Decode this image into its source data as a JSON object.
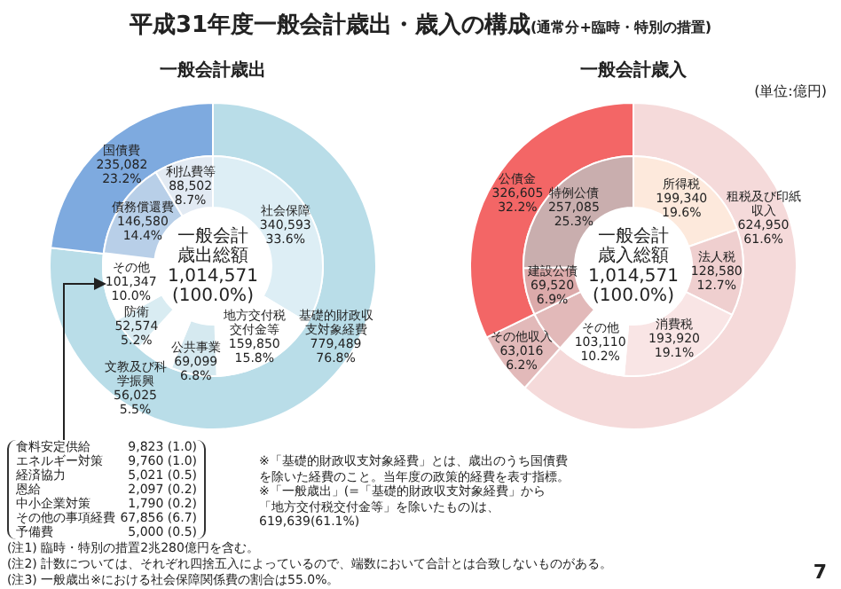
{
  "chart_data": [
    {
      "type": "donut",
      "title": "一般会計歳出",
      "categories": [
        "基礎的財政収支対象経費",
        "国債費"
      ],
      "values": [
        76.8,
        23.2
      ],
      "value_labels": [
        "779,489\n76.8%",
        "235,082\n23.2%"
      ],
      "colors": [
        "#b9dde8",
        "#7eaadf"
      ],
      "annotations": [
        "平成31年度一般会計歳出・歳入の構成",
        "(通常分+臨時・特別の措置)",
        "一般会計歳出総額",
        "1,014,571",
        "(100.0%)",
        "食料安定供給 9,823 (1.0)",
        "エネルギー対策 9,760 (1.0)",
        "経済協力 5,021 (0.5)",
        "恩給 2,097 (0.2)",
        "中小企業対策 1,790 (0.2)",
        "その他の事項経費 67,856 (6.7)",
        "予備費 5,000 (0.5)",
        "(注1) 臨時・特別の措置2兆280億円を含む。",
        "(注2) 計数については、それぞれ四捨五入によっているので、端数において合計とは合致しないものがある。",
        "(注3) 一般歳出※における社会保障関係費の割合は55.0%。"
      ]
    },
    {
      "type": "donut",
      "categories": [
        "社会保障",
        "地方交付税交付金等",
        "公共事業",
        "文教及び科学振興",
        "防衛",
        "その他",
        "債務償還費",
        "利払費等"
      ],
      "values": [
        33.6,
        15.8,
        6.8,
        5.5,
        5.2,
        10.0,
        14.4,
        8.7
      ],
      "value_labels": [
        "340,593\n33.6%",
        "159,850\n15.8%",
        "69,099\n6.8%",
        "56,025\n5.5%",
        "52,574\n5.2%",
        "101,347\n10.0%",
        "146,580\n14.4%",
        "88,502\n8.7%"
      ],
      "colors": [
        "#ddeef5",
        "#ffffff",
        "#d5e9f0",
        "#ffffff",
        "#d9ecf2",
        "#ffffff",
        "#b8cfe8",
        "#e2eaf3"
      ]
    },
    {
      "type": "donut",
      "title": "一般会計歳入",
      "categories": [
        "租税及び印紙収入",
        "その他収入",
        "公債金"
      ],
      "values": [
        61.6,
        6.2,
        32.2
      ],
      "value_labels": [
        "624,950\n61.6%",
        "63,016\n6.2%",
        "326,605\n32.2%"
      ],
      "colors": [
        "#f5dada",
        "#e2b9b9",
        "#f36666"
      ],
      "annotations": [
        "一般会計歳入総額",
        "1,014,571",
        "(100.0%)",
        "(単位:億円)",
        "※「基礎的財政収支対象経費」とは、歳出のうち国債費を除いた経費のこと。当年度の政策的経費を表す指標。",
        "※「一般歳出」(=「基礎的財政収支対象経費」から「地方交付税交付金等」を除いたもの)は、619,639(61.1%)",
        "7"
      ]
    },
    {
      "type": "donut",
      "categories": [
        "所得税",
        "法人税",
        "消費税",
        "その他",
        null,
        "建設公債",
        "特例公債"
      ],
      "values": [
        19.6,
        12.7,
        19.1,
        10.2,
        6.2,
        6.9,
        25.3
      ],
      "value_labels": [
        "199,340\n19.6%",
        "128,580\n12.7%",
        "193,920\n19.1%",
        "103,110\n10.2%",
        null,
        "69,520\n6.9%",
        "257,085\n25.3%"
      ],
      "colors": [
        "#fde9dc",
        "#efcfcf",
        "#f9e5e5",
        "#ffffff",
        "#e2b9b9",
        "#dcaaaa",
        "#c9aeae"
      ]
    }
  ]
}
